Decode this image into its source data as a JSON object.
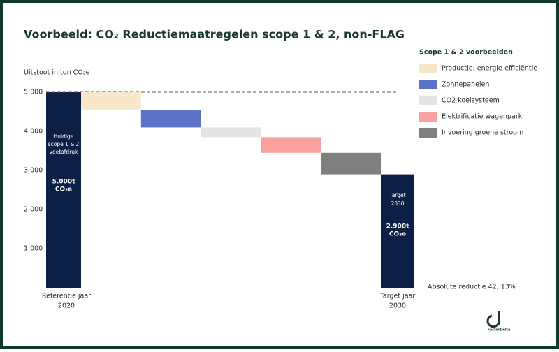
{
  "chart_data": {
    "type": "waterfall",
    "title": "Voorbeeld: CO₂ Reductiemaatregelen scope 1 & 2, non-FLAG",
    "y_label": "Uitstoot in ton CO₂e",
    "ylim": [
      0,
      5000
    ],
    "yticks": [
      {
        "value": 1000,
        "label": "1.000"
      },
      {
        "value": 2000,
        "label": "2.000"
      },
      {
        "value": 3000,
        "label": "3.000"
      },
      {
        "value": 4000,
        "label": "4.000"
      },
      {
        "value": 5000,
        "label": "5.000"
      }
    ],
    "legend_title": "Scope 1 & 2 voorbeelden",
    "start": {
      "label": [
        "Referentie jaar",
        "2020"
      ],
      "value": 5000,
      "color": "#0c1f44",
      "annotation": [
        "Huidige",
        "scope 1 & 2",
        "voetafdruk"
      ],
      "value_label": [
        "5.000t",
        "CO₂e"
      ]
    },
    "steps": [
      {
        "name": "Productie: energie-efficiëntie",
        "value": -450,
        "color": "#f8e7cb"
      },
      {
        "name": "Zonnepanelen",
        "value": -450,
        "color": "#5a73c9"
      },
      {
        "name": "CO2 koelsysteem",
        "value": -250,
        "color": "#e4e4e4"
      },
      {
        "name": "Elektrificatie wagenpark",
        "value": -400,
        "color": "#f9a0a0"
      },
      {
        "name": "Invoering groene stroom",
        "value": -550,
        "color": "#7f7f7f"
      }
    ],
    "end": {
      "label": [
        "Target jaar",
        "2030"
      ],
      "value": 2900,
      "color": "#0c1f44",
      "annotation": [
        "Target",
        "2030"
      ],
      "value_label": [
        "2.900t",
        "CO₂e"
      ]
    },
    "note": "Absolute reductie 42, 13%",
    "logo": "FactorDelta"
  }
}
